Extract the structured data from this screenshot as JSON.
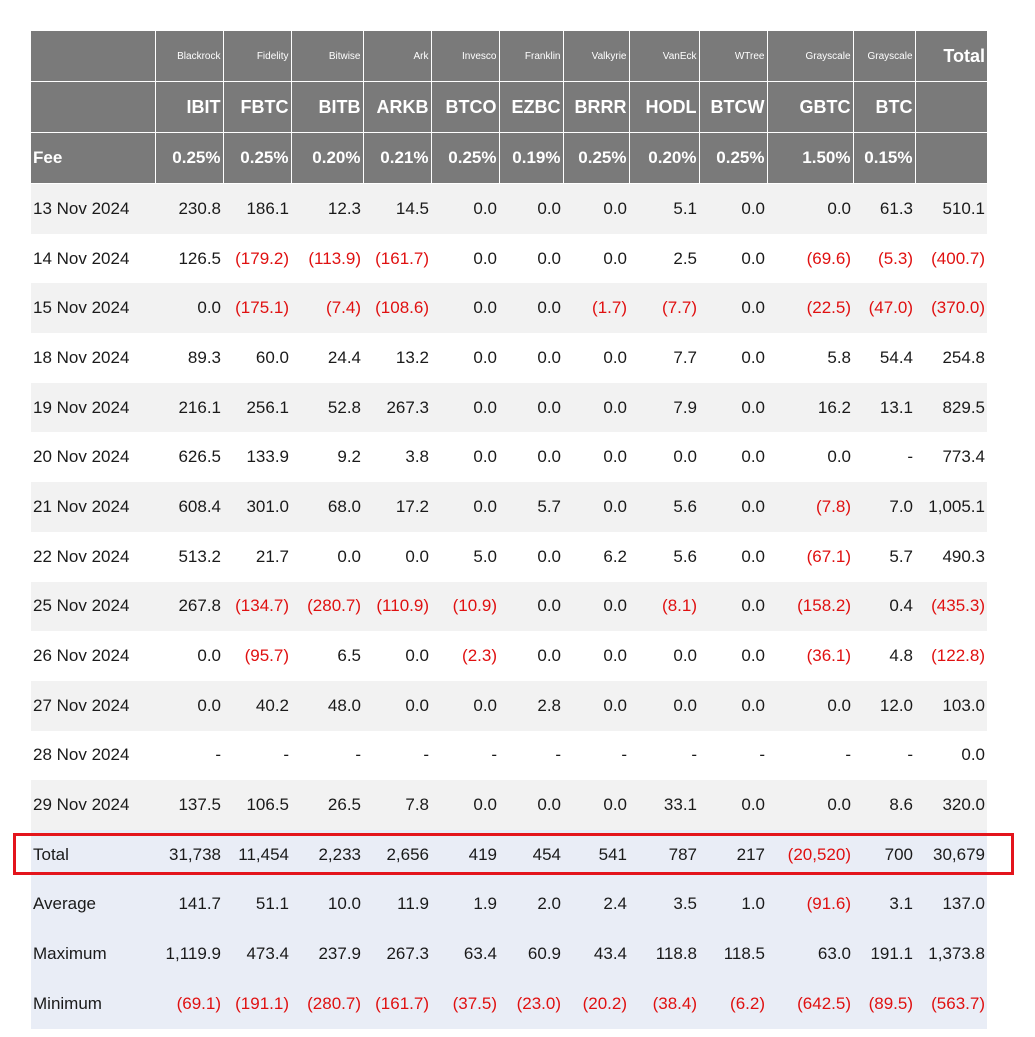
{
  "header": {
    "issuers": [
      "",
      "Blackrock",
      "Fidelity",
      "Bitwise",
      "Ark",
      "Invesco",
      "Franklin",
      "Valkyrie",
      "VanEck",
      "WTree",
      "Grayscale",
      "Grayscale"
    ],
    "total_label": "Total",
    "tickers": [
      "",
      "IBIT",
      "FBTC",
      "BITB",
      "ARKB",
      "BTCO",
      "EZBC",
      "BRRR",
      "HODL",
      "BTCW",
      "GBTC",
      "BTC",
      ""
    ],
    "fee_label": "Fee",
    "fees": [
      "0.25%",
      "0.25%",
      "0.20%",
      "0.21%",
      "0.25%",
      "0.19%",
      "0.25%",
      "0.20%",
      "0.25%",
      "1.50%",
      "0.15%",
      ""
    ]
  },
  "rows": [
    {
      "date": "13 Nov 2024",
      "values": [
        "230.8",
        "186.1",
        "12.3",
        "14.5",
        "0.0",
        "0.0",
        "0.0",
        "5.1",
        "0.0",
        "0.0",
        "61.3",
        "510.1"
      ]
    },
    {
      "date": "14 Nov 2024",
      "values": [
        "126.5",
        "(179.2)",
        "(113.9)",
        "(161.7)",
        "0.0",
        "0.0",
        "0.0",
        "2.5",
        "0.0",
        "(69.6)",
        "(5.3)",
        "(400.7)"
      ]
    },
    {
      "date": "15 Nov 2024",
      "values": [
        "0.0",
        "(175.1)",
        "(7.4)",
        "(108.6)",
        "0.0",
        "0.0",
        "(1.7)",
        "(7.7)",
        "0.0",
        "(22.5)",
        "(47.0)",
        "(370.0)"
      ]
    },
    {
      "date": "18 Nov 2024",
      "values": [
        "89.3",
        "60.0",
        "24.4",
        "13.2",
        "0.0",
        "0.0",
        "0.0",
        "7.7",
        "0.0",
        "5.8",
        "54.4",
        "254.8"
      ]
    },
    {
      "date": "19 Nov 2024",
      "values": [
        "216.1",
        "256.1",
        "52.8",
        "267.3",
        "0.0",
        "0.0",
        "0.0",
        "7.9",
        "0.0",
        "16.2",
        "13.1",
        "829.5"
      ]
    },
    {
      "date": "20 Nov 2024",
      "values": [
        "626.5",
        "133.9",
        "9.2",
        "3.8",
        "0.0",
        "0.0",
        "0.0",
        "0.0",
        "0.0",
        "0.0",
        "-",
        "773.4"
      ]
    },
    {
      "date": "21 Nov 2024",
      "values": [
        "608.4",
        "301.0",
        "68.0",
        "17.2",
        "0.0",
        "5.7",
        "0.0",
        "5.6",
        "0.0",
        "(7.8)",
        "7.0",
        "1,005.1"
      ]
    },
    {
      "date": "22 Nov 2024",
      "values": [
        "513.2",
        "21.7",
        "0.0",
        "0.0",
        "5.0",
        "0.0",
        "6.2",
        "5.6",
        "0.0",
        "(67.1)",
        "5.7",
        "490.3"
      ]
    },
    {
      "date": "25 Nov 2024",
      "values": [
        "267.8",
        "(134.7)",
        "(280.7)",
        "(110.9)",
        "(10.9)",
        "0.0",
        "0.0",
        "(8.1)",
        "0.0",
        "(158.2)",
        "0.4",
        "(435.3)"
      ]
    },
    {
      "date": "26 Nov 2024",
      "values": [
        "0.0",
        "(95.7)",
        "6.5",
        "0.0",
        "(2.3)",
        "0.0",
        "0.0",
        "0.0",
        "0.0",
        "(36.1)",
        "4.8",
        "(122.8)"
      ]
    },
    {
      "date": "27 Nov 2024",
      "values": [
        "0.0",
        "40.2",
        "48.0",
        "0.0",
        "0.0",
        "2.8",
        "0.0",
        "0.0",
        "0.0",
        "0.0",
        "12.0",
        "103.0"
      ]
    },
    {
      "date": "28 Nov 2024",
      "values": [
        "-",
        "-",
        "-",
        "-",
        "-",
        "-",
        "-",
        "-",
        "-",
        "-",
        "-",
        "0.0"
      ]
    },
    {
      "date": "29 Nov 2024",
      "values": [
        "137.5",
        "106.5",
        "26.5",
        "7.8",
        "0.0",
        "0.0",
        "0.0",
        "33.1",
        "0.0",
        "0.0",
        "8.6",
        "320.0"
      ]
    }
  ],
  "summary": [
    {
      "label": "Total",
      "values": [
        "31,738",
        "11,454",
        "2,233",
        "2,656",
        "419",
        "454",
        "541",
        "787",
        "217",
        "(20,520)",
        "700",
        "30,679"
      ]
    },
    {
      "label": "Average",
      "values": [
        "141.7",
        "51.1",
        "10.0",
        "11.9",
        "1.9",
        "2.0",
        "2.4",
        "3.5",
        "1.0",
        "(91.6)",
        "3.1",
        "137.0"
      ]
    },
    {
      "label": "Maximum",
      "values": [
        "1,119.9",
        "473.4",
        "237.9",
        "267.3",
        "63.4",
        "60.9",
        "43.4",
        "118.8",
        "118.5",
        "63.0",
        "191.1",
        "1,373.8"
      ]
    },
    {
      "label": "Minimum",
      "values": [
        "(69.1)",
        "(191.1)",
        "(280.7)",
        "(161.7)",
        "(37.5)",
        "(23.0)",
        "(20.2)",
        "(38.4)",
        "(6.2)",
        "(642.5)",
        "(89.5)",
        "(563.7)"
      ]
    }
  ],
  "colors": {
    "header_bg": "#7a7a7a",
    "negative": "#e01010",
    "highlight": "#e3141c",
    "summary_bg": "#e9edf6",
    "stripe": "#f2f2f2"
  }
}
